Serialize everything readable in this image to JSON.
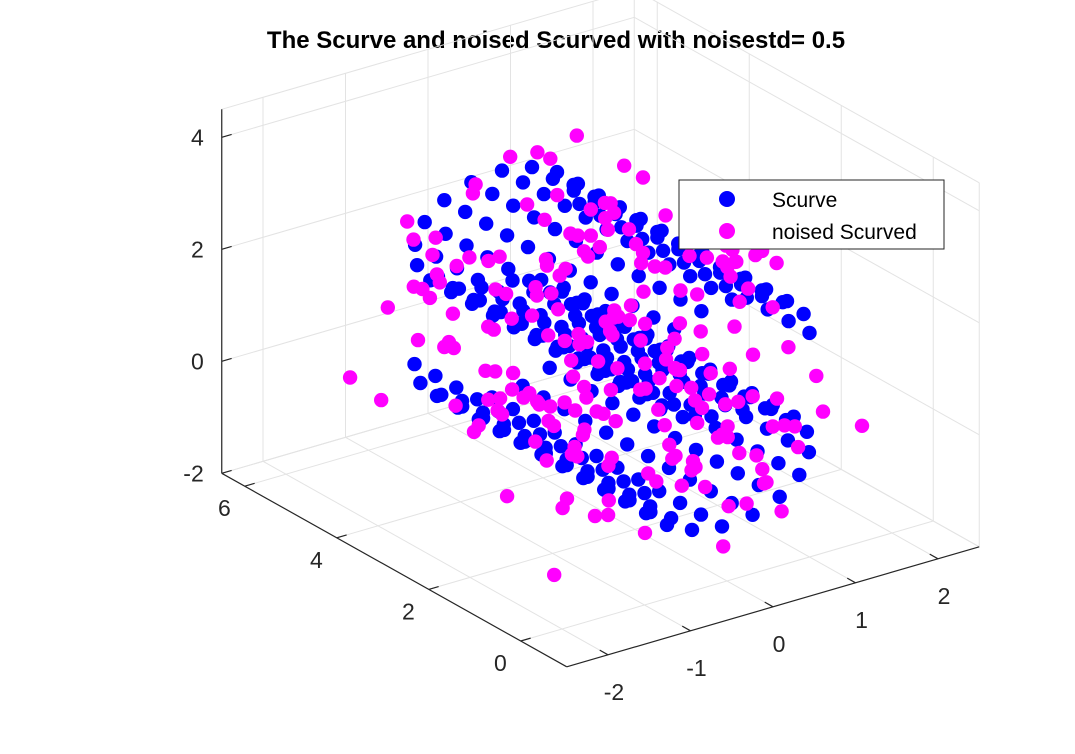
{
  "chart_data": {
    "type": "scatter",
    "projection": "3d",
    "title": "The Scurve and noised Scurved with noisestd= 0.5",
    "xlabel": "",
    "ylabel": "",
    "zlabel": "",
    "xlim": [
      -2.5,
      2.5
    ],
    "ylim": [
      -1,
      6.5
    ],
    "zlim": [
      -2,
      4.5
    ],
    "x_ticks": [
      "-2",
      "-1",
      "0",
      "1",
      "2"
    ],
    "y_ticks": [
      "0",
      "2",
      "4",
      "6"
    ],
    "z_ticks": [
      "-2",
      "0",
      "2",
      "4"
    ],
    "grid": true,
    "legend_position": "top-right",
    "series": [
      {
        "name": "Scurve",
        "color": "#0000ff",
        "marker": "filled-circle",
        "shape": "S-curve surface, x = sin(t), y in [0, 5], z = sign(t)·(cos(t) − 1) + 1",
        "t_range": [
          -4.71,
          4.71
        ]
      },
      {
        "name": "noised Scurved",
        "color": "#ff00ff",
        "marker": "filled-circle",
        "shape": "S-curve surface plus Gaussian noise",
        "noise_std": 0.5
      }
    ]
  }
}
